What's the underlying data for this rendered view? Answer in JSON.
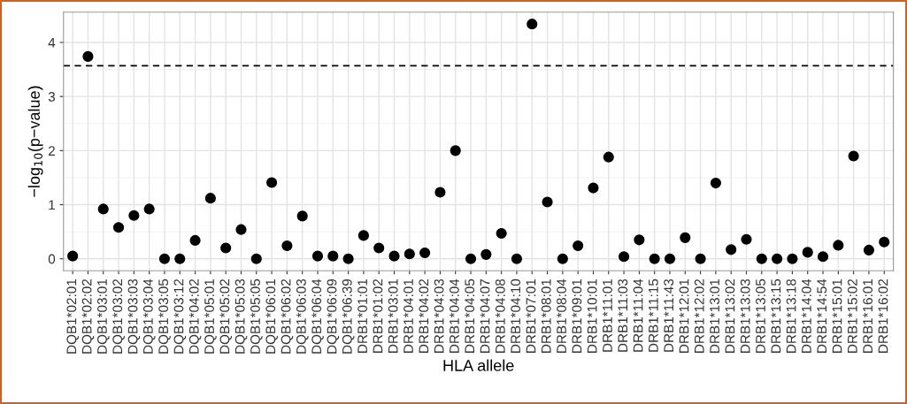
{
  "chart_data": {
    "type": "scatter",
    "xlabel": "HLA allele",
    "ylabel": "−log$_{10}$(p−value)",
    "categories": [
      "DQB1*02:01",
      "DQB1*02:02",
      "DQB1*03:01",
      "DQB1*03:02",
      "DQB1*03:03",
      "DQB1*03:04",
      "DQB1*03:05",
      "DQB1*03:12",
      "DQB1*04:02",
      "DQB1*05:01",
      "DQB1*05:02",
      "DQB1*05:03",
      "DQB1*05:05",
      "DQB1*06:01",
      "DQB1*06:02",
      "DQB1*06:03",
      "DQB1*06:04",
      "DQB1*06:09",
      "DQB1*06:39",
      "DRB1*01:01",
      "DRB1*01:02",
      "DRB1*03:01",
      "DRB1*04:01",
      "DRB1*04:02",
      "DRB1*04:03",
      "DRB1*04:04",
      "DRB1*04:05",
      "DRB1*04:07",
      "DRB1*04:08",
      "DRB1*04:10",
      "DRB1*07:01",
      "DRB1*08:01",
      "DRB1*08:04",
      "DRB1*09:01",
      "DRB1*10:01",
      "DRB1*11:01",
      "DRB1*11:03",
      "DRB1*11:04",
      "DRB1*11:15",
      "DRB1*11:43",
      "DRB1*12:01",
      "DRB1*12:02",
      "DRB1*13:01",
      "DRB1*13:02",
      "DRB1*13:03",
      "DRB1*13:05",
      "DRB1*13:15",
      "DRB1*13:18",
      "DRB1*14:04",
      "DRB1*14:54",
      "DRB1*15:01",
      "DRB1*15:02",
      "DRB1*16:01",
      "DRB1*16:02"
    ],
    "series": [
      {
        "color": "#000000",
        "values": [
          0.05,
          3.74,
          0.92,
          0.58,
          0.8,
          0.92,
          0,
          0,
          0.34,
          1.12,
          0.2,
          0.54,
          0,
          1.41,
          0.24,
          0.79,
          0.05,
          0.05,
          0,
          0.43,
          0.2,
          0.05,
          0.09,
          0.11,
          1.23,
          2.0,
          0,
          0.08,
          0.47,
          0,
          4.34,
          1.05,
          0,
          0.24,
          1.31,
          1.88,
          0.04,
          0.35,
          0,
          0,
          0.39,
          0,
          1.4,
          0.17,
          0.36,
          0,
          0,
          0,
          0.12,
          0.04,
          0.25,
          1.9,
          0.16,
          0.31
        ]
      }
    ],
    "ylim": [
      -0.22,
      4.56
    ],
    "yticks": [
      0,
      1,
      2,
      3,
      4
    ],
    "grid": true,
    "marker": "circle",
    "ref_lines": [
      {
        "axis": "y",
        "value": 3.57,
        "color": "#000000",
        "line_style": "dashed"
      }
    ]
  }
}
